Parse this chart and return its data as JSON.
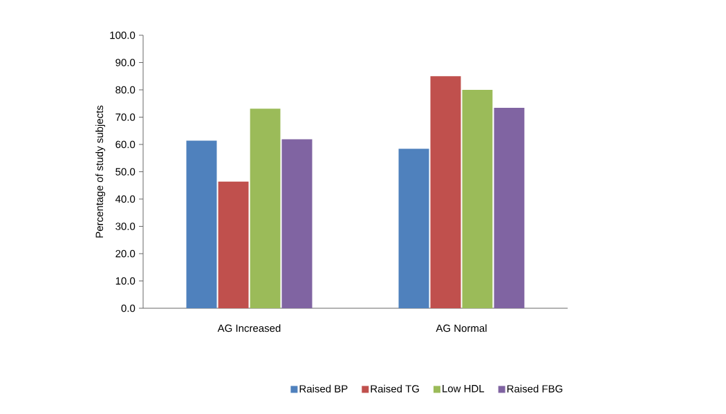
{
  "chart_data": {
    "type": "bar",
    "ylabel": "Percentage of study subjects",
    "categories": [
      "AG Increased",
      "AG Normal"
    ],
    "series": [
      {
        "name": "Raised BP",
        "color": "#4f81bd",
        "values": [
          61.4,
          58.4
        ]
      },
      {
        "name": "Raised TG",
        "color": "#c0504d",
        "values": [
          46.4,
          85.0
        ]
      },
      {
        "name": "Low HDL",
        "color": "#9bbb59",
        "values": [
          73.1,
          80.0
        ]
      },
      {
        "name": "Raised FBG",
        "color": "#8064a2",
        "values": [
          61.9,
          73.4
        ]
      }
    ],
    "ylim": [
      0,
      100
    ],
    "yticks": [
      {
        "value": 0,
        "label": "0.0"
      },
      {
        "value": 10,
        "label": "10.0"
      },
      {
        "value": 20,
        "label": "20.0"
      },
      {
        "value": 30,
        "label": "30.0"
      },
      {
        "value": 40,
        "label": "40.0"
      },
      {
        "value": 50,
        "label": "50.0"
      },
      {
        "value": 60,
        "label": "60.0"
      },
      {
        "value": 70,
        "label": "70.0"
      },
      {
        "value": 80,
        "label": "80.0"
      },
      {
        "value": 90,
        "label": "90.0"
      },
      {
        "value": 100,
        "label": "100.0"
      }
    ],
    "grid": false,
    "legend": "bottom"
  }
}
